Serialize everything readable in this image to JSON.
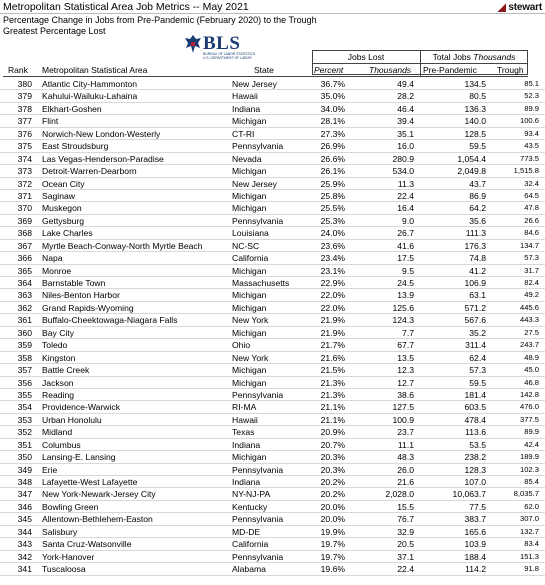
{
  "header": {
    "title": "Metropolitan Statistical Area Job Metrics -- May 2021",
    "subtitle": "Percentage Change in Jobs from Pre-Pandemic (February 2020) to the Trough",
    "subtitle2": "Greatest Percentage Lost",
    "brand": "stewart",
    "bls_logo": "BLS",
    "bls_subtext": [
      "BUREAU OF LABOR STATISTICS",
      "U.S. DEPARTMENT OF LABOR"
    ]
  },
  "columns": {
    "group_jobs_lost": "Jobs Lost",
    "group_total_jobs": "Total Jobs",
    "group_total_jobs_unit": "Thousands",
    "rank": "Rank",
    "msa": "Metropolitan Statistical Area",
    "state": "State",
    "percent": "Percent",
    "thousands": "Thousands",
    "pre_pandemic": "Pre-Pandemic",
    "trough": "Trough"
  },
  "rows": [
    {
      "rank": "380",
      "msa": "Atlantic City-Hammonton",
      "state": "New Jersey",
      "pct": "36.7%",
      "th": "49.4",
      "pre": "134.5",
      "trough": "85.1"
    },
    {
      "rank": "379",
      "msa": "Kahului-Wailuku-Lahaina",
      "state": "Hawaii",
      "pct": "35.0%",
      "th": "28.2",
      "pre": "80.5",
      "trough": "52.3"
    },
    {
      "rank": "378",
      "msa": "Elkhart-Goshen",
      "state": "Indiana",
      "pct": "34.0%",
      "th": "46.4",
      "pre": "136.3",
      "trough": "89.9"
    },
    {
      "rank": "377",
      "msa": "Flint",
      "state": "Michigan",
      "pct": "28.1%",
      "th": "39.4",
      "pre": "140.0",
      "trough": "100.6"
    },
    {
      "rank": "376",
      "msa": "Norwich-New London-Westerly",
      "state": "CT-RI",
      "pct": "27.3%",
      "th": "35.1",
      "pre": "128.5",
      "trough": "93.4"
    },
    {
      "rank": "375",
      "msa": "East Stroudsburg",
      "state": "Pennsylvania",
      "pct": "26.9%",
      "th": "16.0",
      "pre": "59.5",
      "trough": "43.5"
    },
    {
      "rank": "374",
      "msa": "Las Vegas-Henderson-Paradise",
      "state": "Nevada",
      "pct": "26.6%",
      "th": "280.9",
      "pre": "1,054.4",
      "trough": "773.5"
    },
    {
      "rank": "373",
      "msa": "Detroit-Warren-Dearborn",
      "state": "Michigan",
      "pct": "26.1%",
      "th": "534.0",
      "pre": "2,049.8",
      "trough": "1,515.8"
    },
    {
      "rank": "372",
      "msa": "Ocean City",
      "state": "New Jersey",
      "pct": "25.9%",
      "th": "11.3",
      "pre": "43.7",
      "trough": "32.4"
    },
    {
      "rank": "371",
      "msa": "Saginaw",
      "state": "Michigan",
      "pct": "25.8%",
      "th": "22.4",
      "pre": "86.9",
      "trough": "64.5"
    },
    {
      "rank": "370",
      "msa": "Muskegon",
      "state": "Michigan",
      "pct": "25.5%",
      "th": "16.4",
      "pre": "64.2",
      "trough": "47.8"
    },
    {
      "rank": "369",
      "msa": "Gettysburg",
      "state": "Pennsylvania",
      "pct": "25.3%",
      "th": "9.0",
      "pre": "35.6",
      "trough": "26.6"
    },
    {
      "rank": "368",
      "msa": "Lake Charles",
      "state": "Louisiana",
      "pct": "24.0%",
      "th": "26.7",
      "pre": "111.3",
      "trough": "84.6"
    },
    {
      "rank": "367",
      "msa": "Myrtle Beach-Conway-North Myrtle Beach",
      "state": "NC-SC",
      "pct": "23.6%",
      "th": "41.6",
      "pre": "176.3",
      "trough": "134.7"
    },
    {
      "rank": "366",
      "msa": "Napa",
      "state": "California",
      "pct": "23.4%",
      "th": "17.5",
      "pre": "74.8",
      "trough": "57.3"
    },
    {
      "rank": "365",
      "msa": "Monroe",
      "state": "Michigan",
      "pct": "23.1%",
      "th": "9.5",
      "pre": "41.2",
      "trough": "31.7"
    },
    {
      "rank": "364",
      "msa": "Barnstable Town",
      "state": "Massachusetts",
      "pct": "22.9%",
      "th": "24.5",
      "pre": "106.9",
      "trough": "82.4"
    },
    {
      "rank": "363",
      "msa": "Niles-Benton Harbor",
      "state": "Michigan",
      "pct": "22.0%",
      "th": "13.9",
      "pre": "63.1",
      "trough": "49.2"
    },
    {
      "rank": "362",
      "msa": "Grand Rapids-Wyoming",
      "state": "Michigan",
      "pct": "22.0%",
      "th": "125.6",
      "pre": "571.2",
      "trough": "445.6"
    },
    {
      "rank": "361",
      "msa": "Buffalo-Cheektowaga-Niagara Falls",
      "state": "New York",
      "pct": "21.9%",
      "th": "124.3",
      "pre": "567.6",
      "trough": "443.3"
    },
    {
      "rank": "360",
      "msa": "Bay City",
      "state": "Michigan",
      "pct": "21.9%",
      "th": "7.7",
      "pre": "35.2",
      "trough": "27.5"
    },
    {
      "rank": "359",
      "msa": "Toledo",
      "state": "Ohio",
      "pct": "21.7%",
      "th": "67.7",
      "pre": "311.4",
      "trough": "243.7"
    },
    {
      "rank": "358",
      "msa": "Kingston",
      "state": "New York",
      "pct": "21.6%",
      "th": "13.5",
      "pre": "62.4",
      "trough": "48.9"
    },
    {
      "rank": "357",
      "msa": "Battle Creek",
      "state": "Michigan",
      "pct": "21.5%",
      "th": "12.3",
      "pre": "57.3",
      "trough": "45.0"
    },
    {
      "rank": "356",
      "msa": "Jackson",
      "state": "Michigan",
      "pct": "21.3%",
      "th": "12.7",
      "pre": "59.5",
      "trough": "46.8"
    },
    {
      "rank": "355",
      "msa": "Reading",
      "state": "Pennsylvania",
      "pct": "21.3%",
      "th": "38.6",
      "pre": "181.4",
      "trough": "142.8"
    },
    {
      "rank": "354",
      "msa": "Providence-Warwick",
      "state": "RI-MA",
      "pct": "21.1%",
      "th": "127.5",
      "pre": "603.5",
      "trough": "476.0"
    },
    {
      "rank": "353",
      "msa": "Urban Honolulu",
      "state": "Hawaii",
      "pct": "21.1%",
      "th": "100.9",
      "pre": "478.4",
      "trough": "377.5"
    },
    {
      "rank": "352",
      "msa": "Midland",
      "state": "Texas",
      "pct": "20.9%",
      "th": "23.7",
      "pre": "113.6",
      "trough": "89.9"
    },
    {
      "rank": "351",
      "msa": "Columbus",
      "state": "Indiana",
      "pct": "20.7%",
      "th": "11.1",
      "pre": "53.5",
      "trough": "42.4"
    },
    {
      "rank": "350",
      "msa": "Lansing-E. Lansing",
      "state": "Michigan",
      "pct": "20.3%",
      "th": "48.3",
      "pre": "238.2",
      "trough": "189.9"
    },
    {
      "rank": "349",
      "msa": "Erie",
      "state": "Pennsylvania",
      "pct": "20.3%",
      "th": "26.0",
      "pre": "128.3",
      "trough": "102.3"
    },
    {
      "rank": "348",
      "msa": "Lafayette-West Lafayette",
      "state": "Indiana",
      "pct": "20.2%",
      "th": "21.6",
      "pre": "107.0",
      "trough": "85.4"
    },
    {
      "rank": "347",
      "msa": "New York-Newark-Jersey City",
      "state": "NY-NJ-PA",
      "pct": "20.2%",
      "th": "2,028.0",
      "pre": "10,063.7",
      "trough": "8,035.7"
    },
    {
      "rank": "346",
      "msa": "Bowling Green",
      "state": "Kentucky",
      "pct": "20.0%",
      "th": "15.5",
      "pre": "77.5",
      "trough": "62.0"
    },
    {
      "rank": "345",
      "msa": "Allentown-Bethlehem-Easton",
      "state": "Pennsylvania",
      "pct": "20.0%",
      "th": "76.7",
      "pre": "383.7",
      "trough": "307.0"
    },
    {
      "rank": "344",
      "msa": "Salisbury",
      "state": "MD-DE",
      "pct": "19.9%",
      "th": "32.9",
      "pre": "165.6",
      "trough": "132.7"
    },
    {
      "rank": "343",
      "msa": "Santa Cruz-Watsonville",
      "state": "California",
      "pct": "19.7%",
      "th": "20.5",
      "pre": "103.9",
      "trough": "83.4"
    },
    {
      "rank": "342",
      "msa": "York-Hanover",
      "state": "Pennsylvania",
      "pct": "19.7%",
      "th": "37.1",
      "pre": "188.4",
      "trough": "151.3"
    },
    {
      "rank": "341",
      "msa": "Tuscaloosa",
      "state": "Alabama",
      "pct": "19.6%",
      "th": "22.4",
      "pre": "114.2",
      "trough": "91.8"
    }
  ]
}
